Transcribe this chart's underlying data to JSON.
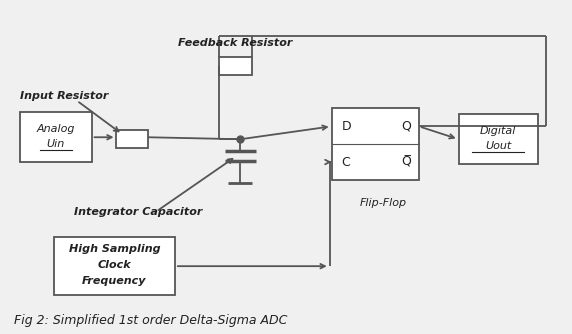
{
  "bg_color": "#f0f0f0",
  "line_color": "#555555",
  "box_color": "#ffffff",
  "title": "Fig 2: Simplified 1st order Delta-Sigma ADC",
  "feedback_resistor": "Feedback Resistor",
  "input_resistor": "Input Resistor",
  "integrator_cap": "Integrator Capacitor",
  "flip_flop": "Flip-Flop",
  "analog_line1": "Analog",
  "analog_line2": "Uin",
  "digital_line1": "Digital",
  "digital_line2": "Uout",
  "clock_line1": "High Sampling",
  "clock_line2": "Clock",
  "clock_line3": "Frequency",
  "ff_d": "D",
  "ff_q": "Q",
  "ff_c": "C",
  "figsize": [
    5.72,
    3.34
  ],
  "dpi": 100
}
